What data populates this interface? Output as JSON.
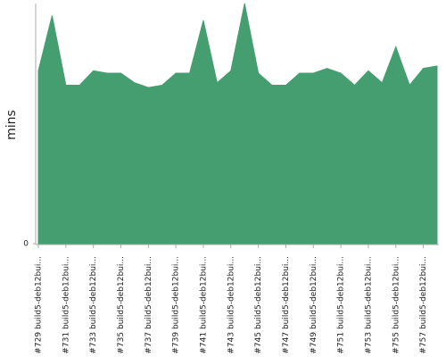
{
  "chart_data": {
    "type": "area",
    "ylabel": "mins",
    "categories": [
      "#729 build5-deb12bui...",
      null,
      "#731 build5-deb12bui...",
      null,
      "#733 build5-deb12bui...",
      null,
      "#735 build5-deb12bui...",
      null,
      "#737 build5-deb12bui...",
      null,
      "#739 build5-deb12bui...",
      null,
      "#741 build5-deb12bui...",
      null,
      "#743 build5-deb12bui...",
      null,
      "#745 build5-deb12bui...",
      null,
      "#747 build5-deb12bui...",
      null,
      "#749 build5-deb12bui...",
      null,
      "#751 build5-deb12bui...",
      null,
      "#753 build5-deb12bui...",
      null,
      "#755 build5-deb12bui...",
      null,
      "#757 build5-deb12bui...",
      null
    ],
    "values": [
      72,
      95,
      66,
      66,
      72,
      71,
      71,
      67,
      65,
      66,
      71,
      71,
      93,
      67,
      72,
      100,
      71,
      66,
      66,
      71,
      71,
      73,
      71,
      66,
      72,
      67,
      82,
      66,
      73,
      74
    ],
    "color": "#459e6f",
    "ylim": [
      0,
      100
    ],
    "yticks": [
      0
    ]
  }
}
